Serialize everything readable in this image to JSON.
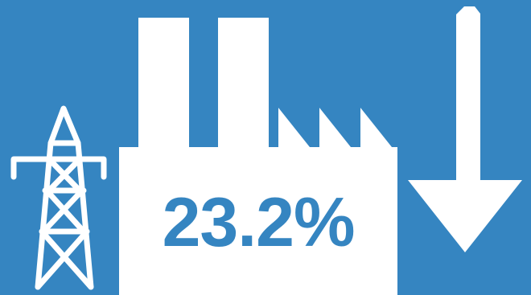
{
  "colors": {
    "background": "#3585c1",
    "foreground": "#ffffff",
    "value_text": "#3585c1"
  },
  "icons": [
    "power-pylon-icon",
    "factory-icon",
    "arrow-down-icon"
  ],
  "stat": {
    "value": "23.2%",
    "trend": "down"
  }
}
